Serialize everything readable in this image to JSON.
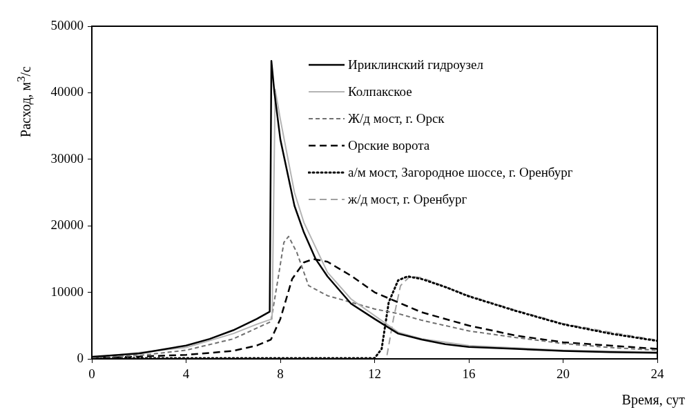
{
  "chart_data": {
    "type": "line",
    "xlabel": "Время, сут",
    "ylabel": "Расход, м$^{3}$/с",
    "xlim": [
      0,
      24
    ],
    "xticks": [
      0,
      4,
      8,
      12,
      16,
      20,
      24
    ],
    "ylim": [
      0,
      50000
    ],
    "yticks": [
      0,
      10000,
      20000,
      30000,
      40000,
      50000
    ],
    "grid": false,
    "legend": "top right",
    "series": [
      {
        "name": "Ириклинский гидроузел",
        "color": "#000000",
        "line_style": "solid",
        "x": [
          0,
          2,
          4,
          5,
          6,
          7,
          7.55,
          7.62,
          7.75,
          8,
          8.6,
          9,
          9.5,
          10,
          11,
          12,
          13,
          14,
          15,
          16,
          18,
          20,
          22,
          24
        ],
        "values": [
          300,
          800,
          2000,
          3000,
          4300,
          6000,
          7100,
          44800,
          40000,
          33000,
          23000,
          19000,
          15000,
          12400,
          8300,
          6000,
          3800,
          2900,
          2200,
          1800,
          1500,
          1200,
          1000,
          900
        ]
      },
      {
        "name": "Колпакское",
        "color": "#b4b4b4",
        "line_style": "solid",
        "x": [
          0,
          4,
          6,
          7,
          7.65,
          7.78,
          8,
          8.6,
          9,
          10,
          11,
          12,
          13,
          14,
          16,
          20,
          24
        ],
        "values": [
          200,
          1700,
          3800,
          5200,
          6000,
          40500,
          36000,
          25000,
          20500,
          13000,
          9000,
          6500,
          4000,
          3000,
          2000,
          1300,
          1000
        ]
      },
      {
        "name": "Ж/д мост, г. Орск",
        "color": "#707070",
        "line_style": "dashed",
        "x": [
          0,
          2,
          4,
          6,
          7.6,
          7.9,
          8.15,
          8.35,
          8.7,
          9.2,
          10,
          11,
          12,
          13,
          14,
          16,
          18,
          20,
          22,
          24
        ],
        "values": [
          200,
          500,
          1300,
          3000,
          5600,
          12000,
          17500,
          18400,
          16000,
          11000,
          9500,
          8500,
          7500,
          6800,
          5800,
          4200,
          3200,
          2300,
          1700,
          1300
        ]
      },
      {
        "name": "Орские ворота",
        "color": "#000000",
        "line_style": "dashed",
        "x": [
          0,
          4,
          6,
          7,
          7.6,
          8,
          8.5,
          9,
          9.4,
          10,
          11,
          12,
          13,
          14,
          16,
          18,
          20,
          22,
          24
        ],
        "values": [
          100,
          600,
          1200,
          2000,
          2900,
          6000,
          12000,
          14500,
          15000,
          14600,
          12500,
          10000,
          8500,
          7000,
          5000,
          3500,
          2500,
          2000,
          1500
        ]
      },
      {
        "name": "а/м мост, Загородное шоссе, г. Оренбург",
        "color": "#000000",
        "line_style": "dotted",
        "x": [
          0,
          12,
          12.3,
          12.6,
          13,
          13.4,
          14,
          15,
          16,
          18,
          20,
          22,
          24
        ],
        "values": [
          100,
          100,
          1500,
          8500,
          11800,
          12400,
          12000,
          10800,
          9400,
          7200,
          5200,
          3800,
          2700
        ]
      },
      {
        "name": "ж/д мост, г. Оренбург",
        "color": "#a0a0a0",
        "line_style": "dashed",
        "x": [
          0,
          12.5,
          12.8,
          13.1,
          13.5,
          14,
          16,
          18,
          20,
          22,
          24
        ],
        "values": [
          0,
          0,
          6000,
          11000,
          12400,
          12200,
          9500,
          7300,
          5300,
          4000,
          2800
        ]
      }
    ]
  }
}
